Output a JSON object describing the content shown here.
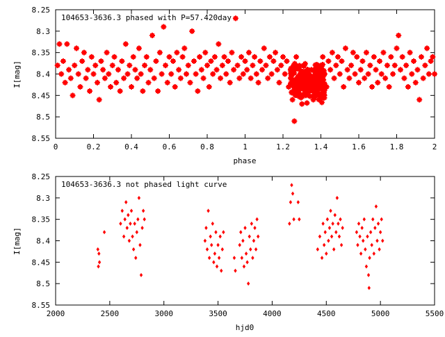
{
  "colors": {
    "points": "#ff0000",
    "axes": "#000000",
    "background": "#ffffff"
  },
  "chart_data": [
    {
      "type": "scatter",
      "title": "104653-3636.3 phased with P=57.420day",
      "xlabel": "phase",
      "ylabel": "I[mag]",
      "xlim": [
        0,
        2
      ],
      "ylim": [
        8.25,
        8.55
      ],
      "y_inverted": true,
      "grid": false,
      "x_ticks": [
        "0",
        "0.2",
        "0.4",
        "0.6",
        "0.8",
        "1",
        "1.2",
        "1.4",
        "1.6",
        "1.8",
        "2"
      ],
      "y_ticks": [
        "8.25",
        "8.3",
        "8.35",
        "8.4",
        "8.45",
        "8.5",
        "8.55"
      ],
      "marker": "star",
      "points": [
        [
          0.01,
          8.38
        ],
        [
          0.02,
          8.33
        ],
        [
          0.03,
          8.4
        ],
        [
          0.04,
          8.37
        ],
        [
          0.05,
          8.42
        ],
        [
          0.06,
          8.33
        ],
        [
          0.07,
          8.39
        ],
        [
          0.08,
          8.41
        ],
        [
          0.09,
          8.45
        ],
        [
          0.1,
          8.38
        ],
        [
          0.11,
          8.34
        ],
        [
          0.12,
          8.4
        ],
        [
          0.13,
          8.43
        ],
        [
          0.14,
          8.37
        ],
        [
          0.15,
          8.35
        ],
        [
          0.16,
          8.41
        ],
        [
          0.17,
          8.39
        ],
        [
          0.18,
          8.44
        ],
        [
          0.19,
          8.36
        ],
        [
          0.2,
          8.4
        ],
        [
          0.21,
          8.38
        ],
        [
          0.22,
          8.42
        ],
        [
          0.23,
          8.46
        ],
        [
          0.24,
          8.37
        ],
        [
          0.25,
          8.39
        ],
        [
          0.26,
          8.41
        ],
        [
          0.27,
          8.35
        ],
        [
          0.28,
          8.4
        ],
        [
          0.29,
          8.43
        ],
        [
          0.3,
          8.38
        ],
        [
          0.31,
          8.36
        ],
        [
          0.32,
          8.42
        ],
        [
          0.33,
          8.39
        ],
        [
          0.34,
          8.44
        ],
        [
          0.35,
          8.37
        ],
        [
          0.36,
          8.41
        ],
        [
          0.37,
          8.33
        ],
        [
          0.38,
          8.4
        ],
        [
          0.39,
          8.38
        ],
        [
          0.4,
          8.43
        ],
        [
          0.41,
          8.36
        ],
        [
          0.42,
          8.39
        ],
        [
          0.43,
          8.41
        ],
        [
          0.44,
          8.34
        ],
        [
          0.45,
          8.4
        ],
        [
          0.46,
          8.44
        ],
        [
          0.47,
          8.38
        ],
        [
          0.48,
          8.36
        ],
        [
          0.49,
          8.42
        ],
        [
          0.5,
          8.39
        ],
        [
          0.51,
          8.31
        ],
        [
          0.52,
          8.41
        ],
        [
          0.53,
          8.37
        ],
        [
          0.54,
          8.44
        ],
        [
          0.55,
          8.35
        ],
        [
          0.56,
          8.4
        ],
        [
          0.57,
          8.29
        ],
        [
          0.58,
          8.38
        ],
        [
          0.59,
          8.42
        ],
        [
          0.6,
          8.36
        ],
        [
          0.61,
          8.4
        ],
        [
          0.62,
          8.37
        ],
        [
          0.63,
          8.43
        ],
        [
          0.64,
          8.35
        ],
        [
          0.65,
          8.39
        ],
        [
          0.66,
          8.41
        ],
        [
          0.67,
          8.36
        ],
        [
          0.68,
          8.34
        ],
        [
          0.69,
          8.4
        ],
        [
          0.7,
          8.38
        ],
        [
          0.71,
          8.42
        ],
        [
          0.72,
          8.3
        ],
        [
          0.73,
          8.37
        ],
        [
          0.74,
          8.4
        ],
        [
          0.75,
          8.44
        ],
        [
          0.76,
          8.36
        ],
        [
          0.77,
          8.39
        ],
        [
          0.78,
          8.41
        ],
        [
          0.79,
          8.35
        ],
        [
          0.8,
          8.38
        ],
        [
          0.81,
          8.43
        ],
        [
          0.82,
          8.37
        ],
        [
          0.83,
          8.4
        ],
        [
          0.84,
          8.36
        ],
        [
          0.85,
          8.39
        ],
        [
          0.86,
          8.33
        ],
        [
          0.87,
          8.41
        ],
        [
          0.88,
          8.38
        ],
        [
          0.89,
          8.36
        ],
        [
          0.9,
          8.4
        ],
        [
          0.91,
          8.37
        ],
        [
          0.92,
          8.42
        ],
        [
          0.93,
          8.35
        ],
        [
          0.94,
          8.39
        ],
        [
          0.95,
          8.27
        ],
        [
          0.96,
          8.38
        ],
        [
          0.97,
          8.41
        ],
        [
          0.98,
          8.36
        ],
        [
          0.99,
          8.4
        ],
        [
          1.0,
          8.37
        ],
        [
          1.01,
          8.39
        ],
        [
          1.02,
          8.35
        ],
        [
          1.03,
          8.41
        ],
        [
          1.04,
          8.38
        ],
        [
          1.05,
          8.36
        ],
        [
          1.06,
          8.4
        ],
        [
          1.07,
          8.42
        ],
        [
          1.08,
          8.37
        ],
        [
          1.09,
          8.39
        ],
        [
          1.1,
          8.34
        ],
        [
          1.11,
          8.38
        ],
        [
          1.12,
          8.41
        ],
        [
          1.13,
          8.36
        ],
        [
          1.14,
          8.4
        ],
        [
          1.15,
          8.37
        ],
        [
          1.16,
          8.35
        ],
        [
          1.17,
          8.39
        ],
        [
          1.18,
          8.42
        ],
        [
          1.19,
          8.38
        ],
        [
          1.2,
          8.36
        ],
        [
          1.21,
          8.4
        ],
        [
          1.22,
          8.37
        ],
        [
          1.23,
          8.43
        ],
        [
          1.24,
          8.39
        ],
        [
          1.25,
          8.46
        ],
        [
          1.26,
          8.51
        ],
        [
          1.27,
          8.36
        ],
        [
          1.28,
          8.44
        ],
        [
          1.29,
          8.4
        ],
        [
          1.3,
          8.47
        ],
        [
          1.31,
          8.38
        ],
        [
          1.32,
          8.45
        ],
        [
          1.33,
          8.41
        ],
        [
          1.34,
          8.43
        ],
        [
          1.35,
          8.39
        ],
        [
          1.36,
          8.46
        ],
        [
          1.37,
          8.42
        ],
        [
          1.38,
          8.44
        ],
        [
          1.39,
          8.4
        ],
        [
          1.4,
          8.38
        ],
        [
          1.41,
          8.36
        ],
        [
          1.42,
          8.4
        ],
        [
          1.43,
          8.43
        ],
        [
          1.44,
          8.37
        ],
        [
          1.45,
          8.39
        ],
        [
          1.46,
          8.35
        ],
        [
          1.47,
          8.41
        ],
        [
          1.48,
          8.38
        ],
        [
          1.49,
          8.36
        ],
        [
          1.5,
          8.4
        ],
        [
          1.51,
          8.37
        ],
        [
          1.52,
          8.43
        ],
        [
          1.53,
          8.34
        ],
        [
          1.54,
          8.39
        ],
        [
          1.55,
          8.41
        ],
        [
          1.56,
          8.38
        ],
        [
          1.57,
          8.35
        ],
        [
          1.58,
          8.4
        ],
        [
          1.59,
          8.36
        ],
        [
          1.6,
          8.42
        ],
        [
          1.61,
          8.39
        ],
        [
          1.62,
          8.37
        ],
        [
          1.63,
          8.41
        ],
        [
          1.64,
          8.35
        ],
        [
          1.65,
          8.4
        ],
        [
          1.66,
          8.38
        ],
        [
          1.67,
          8.43
        ],
        [
          1.68,
          8.36
        ],
        [
          1.69,
          8.39
        ],
        [
          1.7,
          8.42
        ],
        [
          1.71,
          8.37
        ],
        [
          1.72,
          8.4
        ],
        [
          1.73,
          8.35
        ],
        [
          1.74,
          8.41
        ],
        [
          1.75,
          8.38
        ],
        [
          1.76,
          8.43
        ],
        [
          1.77,
          8.36
        ],
        [
          1.78,
          8.4
        ],
        [
          1.79,
          8.38
        ],
        [
          1.8,
          8.34
        ],
        [
          1.81,
          8.31
        ],
        [
          1.82,
          8.39
        ],
        [
          1.83,
          8.36
        ],
        [
          1.84,
          8.41
        ],
        [
          1.85,
          8.38
        ],
        [
          1.86,
          8.43
        ],
        [
          1.87,
          8.35
        ],
        [
          1.88,
          8.4
        ],
        [
          1.89,
          8.37
        ],
        [
          1.9,
          8.42
        ],
        [
          1.91,
          8.39
        ],
        [
          1.92,
          8.46
        ],
        [
          1.93,
          8.36
        ],
        [
          1.94,
          8.41
        ],
        [
          1.95,
          8.38
        ],
        [
          1.96,
          8.34
        ],
        [
          1.97,
          8.4
        ],
        [
          1.98,
          8.37
        ],
        [
          1.99,
          8.36
        ],
        [
          2.0,
          8.4
        ]
      ],
      "dense_cluster": {
        "x_range": [
          1.24,
          1.42
        ],
        "y_range": [
          8.37,
          8.47
        ],
        "count": 260
      }
    },
    {
      "type": "scatter",
      "title": "104653-3636.3 not phased light curve",
      "xlabel": "hjd0",
      "ylabel": "I[mag]",
      "xlim": [
        2000,
        5500
      ],
      "ylim": [
        8.25,
        8.55
      ],
      "y_inverted": true,
      "grid": false,
      "x_ticks": [
        "2000",
        "2500",
        "3000",
        "3500",
        "4000",
        "4500",
        "5000",
        "5500"
      ],
      "y_ticks": [
        "8.25",
        "8.3",
        "8.35",
        "8.4",
        "8.45",
        "8.5",
        "8.55"
      ],
      "marker": "diamond",
      "points": [
        [
          2390,
          8.42
        ],
        [
          2395,
          8.46
        ],
        [
          2400,
          8.43
        ],
        [
          2405,
          8.45
        ],
        [
          2450,
          8.38
        ],
        [
          2600,
          8.36
        ],
        [
          2615,
          8.33
        ],
        [
          2630,
          8.39
        ],
        [
          2640,
          8.35
        ],
        [
          2650,
          8.31
        ],
        [
          2660,
          8.37
        ],
        [
          2670,
          8.34
        ],
        [
          2680,
          8.4
        ],
        [
          2690,
          8.36
        ],
        [
          2700,
          8.33
        ],
        [
          2710,
          8.39
        ],
        [
          2720,
          8.42
        ],
        [
          2730,
          8.36
        ],
        [
          2740,
          8.44
        ],
        [
          2750,
          8.38
        ],
        [
          2760,
          8.35
        ],
        [
          2770,
          8.3
        ],
        [
          2780,
          8.41
        ],
        [
          2790,
          8.48
        ],
        [
          2800,
          8.37
        ],
        [
          2810,
          8.33
        ],
        [
          2820,
          8.35
        ],
        [
          3380,
          8.4
        ],
        [
          3390,
          8.37
        ],
        [
          3400,
          8.42
        ],
        [
          3410,
          8.33
        ],
        [
          3420,
          8.44
        ],
        [
          3430,
          8.39
        ],
        [
          3440,
          8.41
        ],
        [
          3450,
          8.36
        ],
        [
          3460,
          8.45
        ],
        [
          3470,
          8.43
        ],
        [
          3480,
          8.38
        ],
        [
          3490,
          8.46
        ],
        [
          3500,
          8.41
        ],
        [
          3510,
          8.44
        ],
        [
          3520,
          8.39
        ],
        [
          3530,
          8.47
        ],
        [
          3540,
          8.42
        ],
        [
          3550,
          8.38
        ],
        [
          3650,
          8.44
        ],
        [
          3660,
          8.47
        ],
        [
          3700,
          8.41
        ],
        [
          3710,
          8.38
        ],
        [
          3720,
          8.44
        ],
        [
          3730,
          8.4
        ],
        [
          3740,
          8.46
        ],
        [
          3750,
          8.37
        ],
        [
          3760,
          8.43
        ],
        [
          3770,
          8.45
        ],
        [
          3780,
          8.5
        ],
        [
          3790,
          8.39
        ],
        [
          3800,
          8.42
        ],
        [
          3810,
          8.36
        ],
        [
          3820,
          8.44
        ],
        [
          3830,
          8.4
        ],
        [
          3840,
          8.37
        ],
        [
          3850,
          8.42
        ],
        [
          3860,
          8.35
        ],
        [
          3870,
          8.39
        ],
        [
          4160,
          8.36
        ],
        [
          4170,
          8.31
        ],
        [
          4180,
          8.27
        ],
        [
          4190,
          8.29
        ],
        [
          4200,
          8.35
        ],
        [
          4240,
          8.31
        ],
        [
          4250,
          8.35
        ],
        [
          4420,
          8.42
        ],
        [
          4440,
          8.39
        ],
        [
          4460,
          8.44
        ],
        [
          4470,
          8.36
        ],
        [
          4480,
          8.41
        ],
        [
          4490,
          8.38
        ],
        [
          4500,
          8.43
        ],
        [
          4510,
          8.35
        ],
        [
          4520,
          8.4
        ],
        [
          4530,
          8.37
        ],
        [
          4540,
          8.33
        ],
        [
          4550,
          8.39
        ],
        [
          4560,
          8.36
        ],
        [
          4570,
          8.42
        ],
        [
          4580,
          8.34
        ],
        [
          4590,
          8.38
        ],
        [
          4600,
          8.3
        ],
        [
          4610,
          8.36
        ],
        [
          4620,
          8.39
        ],
        [
          4630,
          8.35
        ],
        [
          4640,
          8.41
        ],
        [
          4650,
          8.37
        ],
        [
          4780,
          8.38
        ],
        [
          4790,
          8.41
        ],
        [
          4800,
          8.36
        ],
        [
          4810,
          8.39
        ],
        [
          4820,
          8.43
        ],
        [
          4830,
          8.37
        ],
        [
          4840,
          8.4
        ],
        [
          4850,
          8.35
        ],
        [
          4860,
          8.42
        ],
        [
          4870,
          8.46
        ],
        [
          4880,
          8.39
        ],
        [
          4890,
          8.48
        ],
        [
          4895,
          8.51
        ],
        [
          4900,
          8.44
        ],
        [
          4910,
          8.38
        ],
        [
          4920,
          8.41
        ],
        [
          4930,
          8.35
        ],
        [
          4940,
          8.43
        ],
        [
          4950,
          8.37
        ],
        [
          4960,
          8.32
        ],
        [
          4970,
          8.4
        ],
        [
          4980,
          8.36
        ],
        [
          4990,
          8.42
        ],
        [
          5000,
          8.38
        ],
        [
          5010,
          8.35
        ],
        [
          5020,
          8.4
        ]
      ]
    }
  ]
}
